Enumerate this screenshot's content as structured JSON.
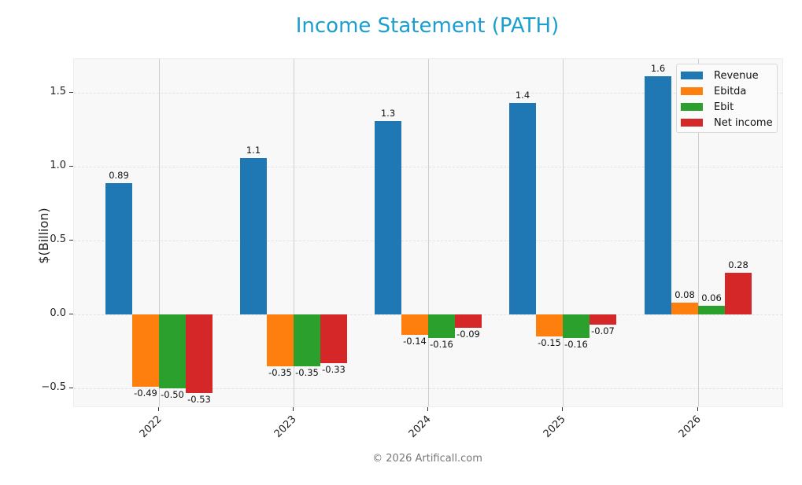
{
  "page": {
    "title": "Income Statement (PATH)",
    "footer": "© 2026 Artificall.com"
  },
  "colors": {
    "title": "#1a9fd0",
    "Revenue": "#1f77b4",
    "Ebitda": "#ff7f0e",
    "Ebit": "#2ca02c",
    "Net income": "#d62728"
  },
  "axis": {
    "ylabel": "$(Billion)",
    "yticks": [
      "1.5",
      "1.0",
      "0.5",
      "0.0",
      "−0.5"
    ],
    "xticks": [
      "2022",
      "2023",
      "2024",
      "2025",
      "2026"
    ]
  },
  "legend": {
    "items": [
      "Revenue",
      "Ebitda",
      "Ebit",
      "Net income"
    ]
  },
  "chart_data": {
    "type": "bar",
    "title": "Income Statement (PATH)",
    "xlabel": "",
    "ylabel": "$(Billion)",
    "categories": [
      "2022",
      "2023",
      "2024",
      "2025",
      "2026"
    ],
    "series": [
      {
        "name": "Revenue",
        "color": "#1f77b4",
        "values": [
          0.89,
          1.06,
          1.31,
          1.43,
          1.61
        ],
        "labels": [
          "0.89",
          "1.1",
          "1.3",
          "1.4",
          "1.6"
        ]
      },
      {
        "name": "Ebitda",
        "color": "#ff7f0e",
        "values": [
          -0.49,
          -0.35,
          -0.14,
          -0.15,
          0.08
        ],
        "labels": [
          "-0.49",
          "-0.35",
          "-0.14",
          "-0.15",
          "0.08"
        ]
      },
      {
        "name": "Ebit",
        "color": "#2ca02c",
        "values": [
          -0.5,
          -0.35,
          -0.16,
          -0.16,
          0.06
        ],
        "labels": [
          "-0.50",
          "-0.35",
          "-0.16",
          "-0.16",
          "0.06"
        ]
      },
      {
        "name": "Net income",
        "color": "#d62728",
        "values": [
          -0.53,
          -0.33,
          -0.09,
          -0.07,
          0.28
        ],
        "labels": [
          "-0.53",
          "-0.33",
          "-0.09",
          "-0.07",
          "0.28"
        ]
      }
    ],
    "ylim": [
      -0.63,
      1.73
    ],
    "yticks": [
      -0.5,
      0.0,
      0.5,
      1.0,
      1.5
    ],
    "grid": true,
    "legend_position": "upper right"
  }
}
